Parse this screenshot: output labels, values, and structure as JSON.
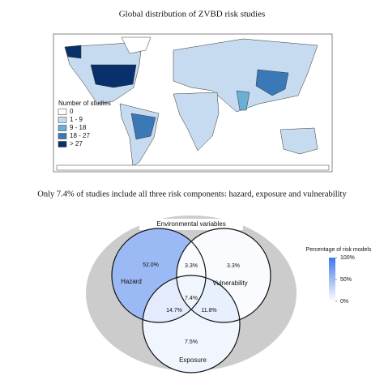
{
  "map": {
    "title": "Global distribution of ZVBD risk studies",
    "legend_title": "Number of studies",
    "legend": [
      {
        "label": "0",
        "color": "#ffffff"
      },
      {
        "label": "1 - 9",
        "color": "#c6dbef"
      },
      {
        "label": "9 - 18",
        "color": "#6baed6"
      },
      {
        "label": "18 - 27",
        "color": "#3a78b8"
      },
      {
        "label": "> 27",
        "color": "#08306b"
      }
    ]
  },
  "venn": {
    "subtitle": "Only 7.4% of studies include all three risk components: hazard, exposure and vulnerability",
    "outer_label": "Environmental variables",
    "sets": [
      "Hazard",
      "Vulnerability",
      "Exposure"
    ],
    "regions": [
      {
        "value": 52.0,
        "label": "52.0%"
      },
      {
        "value": 3.3,
        "label": "3.3%"
      },
      {
        "value": 3.3,
        "label": "3.3%"
      },
      {
        "value": 7.4,
        "label": "7.4%"
      },
      {
        "value": 14.7,
        "label": "14.7%"
      },
      {
        "value": 11.8,
        "label": "11.8%"
      },
      {
        "value": 7.5,
        "label": "7.5%"
      }
    ],
    "colorbar": {
      "title": "Percentage of risk models",
      "colors": [
        "#ffffff",
        "#3f78ea"
      ],
      "ticks": [
        {
          "value": 100,
          "label": "100%"
        },
        {
          "value": 50,
          "label": "50%"
        },
        {
          "value": 0,
          "label": "0%"
        }
      ]
    }
  }
}
